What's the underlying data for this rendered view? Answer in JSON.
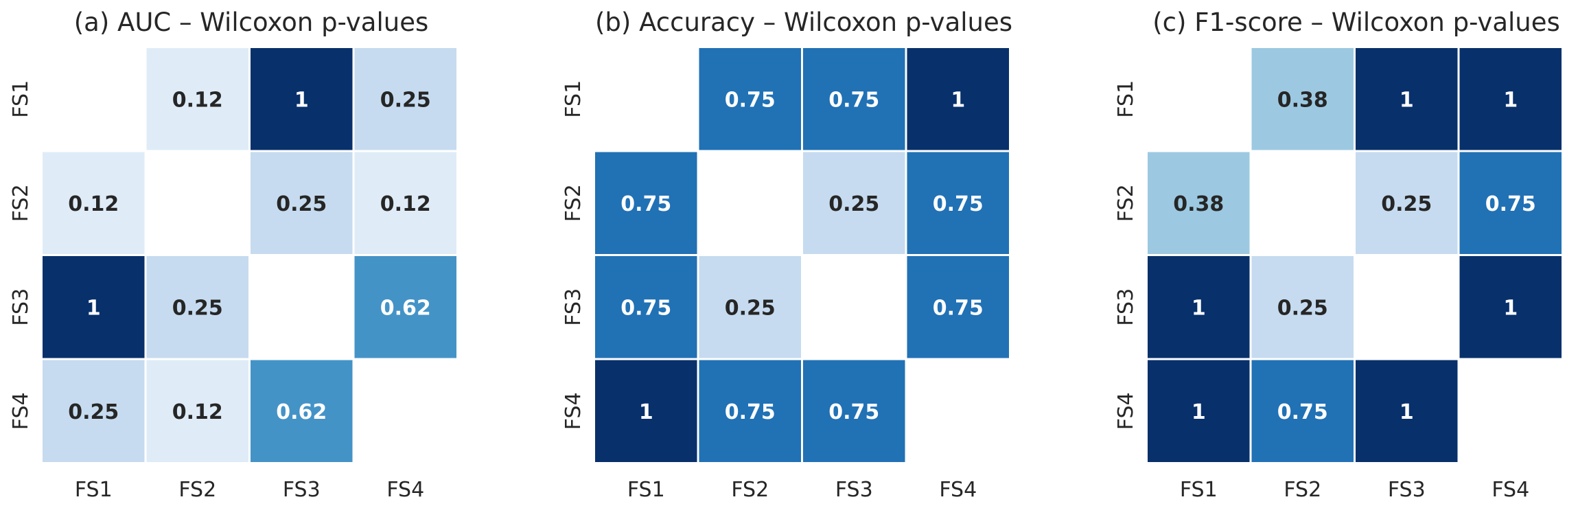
{
  "chart_data": [
    {
      "type": "heatmap",
      "title": "(a) AUC – Wilcoxon p-values",
      "row_labels": [
        "FS1",
        "FS2",
        "FS3",
        "FS4"
      ],
      "col_labels": [
        "FS1",
        "FS2",
        "FS3",
        "FS4"
      ],
      "values": [
        [
          null,
          0.12,
          1,
          0.25
        ],
        [
          0.12,
          null,
          0.25,
          0.12
        ],
        [
          1,
          0.25,
          null,
          0.62
        ],
        [
          0.25,
          0.12,
          0.62,
          null
        ]
      ],
      "labels": [
        [
          "",
          "0.12",
          "1",
          "0.25"
        ],
        [
          "0.12",
          "",
          "0.25",
          "0.12"
        ],
        [
          "1",
          "0.25",
          "",
          "0.62"
        ],
        [
          "0.25",
          "0.12",
          "0.62",
          ""
        ]
      ],
      "colormap": "Blues",
      "vmin": 0,
      "vmax": 1
    },
    {
      "type": "heatmap",
      "title": "(b) Accuracy – Wilcoxon p-values",
      "row_labels": [
        "FS1",
        "FS2",
        "FS3",
        "FS4"
      ],
      "col_labels": [
        "FS1",
        "FS2",
        "FS3",
        "FS4"
      ],
      "values": [
        [
          null,
          0.75,
          0.75,
          1
        ],
        [
          0.75,
          null,
          0.25,
          0.75
        ],
        [
          0.75,
          0.25,
          null,
          0.75
        ],
        [
          1,
          0.75,
          0.75,
          null
        ]
      ],
      "labels": [
        [
          "",
          "0.75",
          "0.75",
          "1"
        ],
        [
          "0.75",
          "",
          "0.25",
          "0.75"
        ],
        [
          "0.75",
          "0.25",
          "",
          "0.75"
        ],
        [
          "1",
          "0.75",
          "0.75",
          ""
        ]
      ],
      "colormap": "Blues",
      "vmin": 0,
      "vmax": 1
    },
    {
      "type": "heatmap",
      "title": "(c) F1-score – Wilcoxon p-values",
      "row_labels": [
        "FS1",
        "FS2",
        "FS3",
        "FS4"
      ],
      "col_labels": [
        "FS1",
        "FS2",
        "FS3",
        "FS4"
      ],
      "values": [
        [
          null,
          0.38,
          1,
          1
        ],
        [
          0.38,
          null,
          0.25,
          0.75
        ],
        [
          1,
          0.25,
          null,
          1
        ],
        [
          1,
          0.75,
          1,
          null
        ]
      ],
      "labels": [
        [
          "",
          "0.38",
          "1",
          "1"
        ],
        [
          "0.38",
          "",
          "0.25",
          "0.75"
        ],
        [
          "1",
          "0.25",
          "",
          "1"
        ],
        [
          "1",
          "0.75",
          "1",
          ""
        ]
      ],
      "colormap": "Blues",
      "vmin": 0,
      "vmax": 1
    }
  ]
}
